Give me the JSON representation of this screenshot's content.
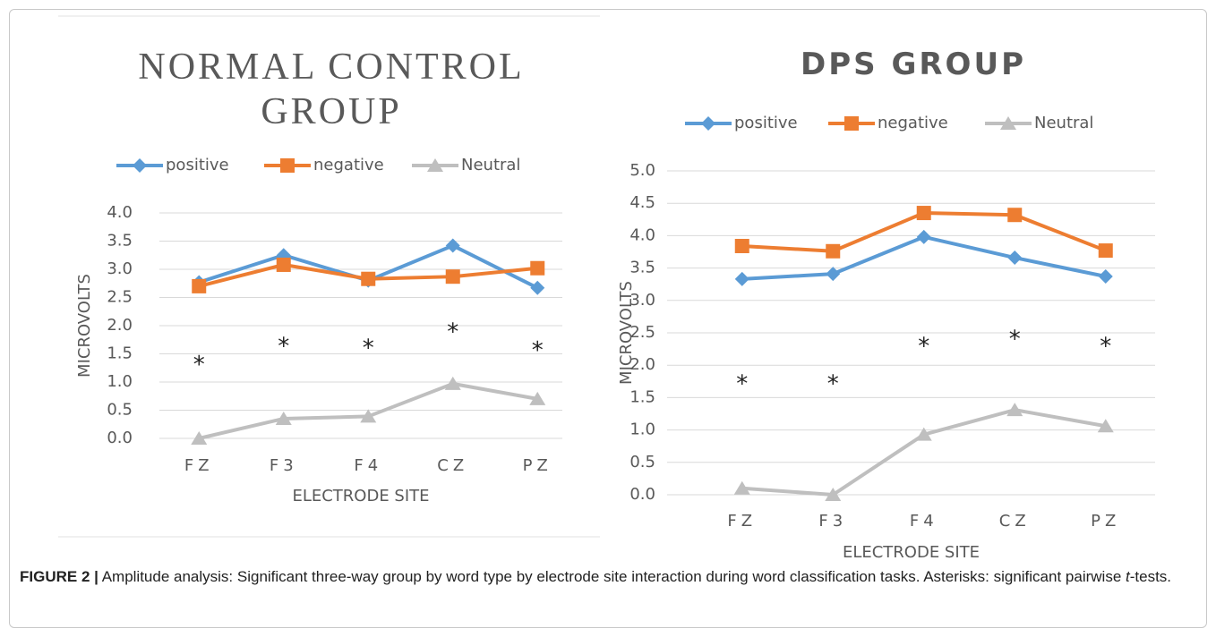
{
  "chart_data": [
    {
      "type": "line",
      "title": "NORMAL CONTROL GROUP",
      "x_label": "ELECTRODE SITE",
      "y_label": "MICROVOLTS",
      "categories": [
        "FZ",
        "F3",
        "F4",
        "CZ",
        "PZ"
      ],
      "series": [
        {
          "name": "positive",
          "color": "#5b9bd5",
          "marker": "diamond",
          "values": [
            2.77,
            3.25,
            2.8,
            3.42,
            2.67
          ]
        },
        {
          "name": "negative",
          "color": "#ed7d31",
          "marker": "square",
          "values": [
            2.7,
            3.08,
            2.83,
            2.87,
            3.02
          ]
        },
        {
          "name": "Neutral",
          "color": "#bfbfbf",
          "marker": "triangle",
          "values": [
            0.0,
            0.35,
            0.39,
            0.97,
            0.7
          ]
        }
      ],
      "ylim": [
        0,
        4
      ],
      "yticks": [
        {
          "value": 0,
          "label": "0.0"
        },
        {
          "value": 0.5,
          "label": "0.5"
        },
        {
          "value": 1,
          "label": "1.0"
        },
        {
          "value": 1.5,
          "label": "1.5"
        },
        {
          "value": 2,
          "label": "2.0"
        },
        {
          "value": 2.5,
          "label": "2.5"
        },
        {
          "value": 3,
          "label": "3.0"
        },
        {
          "value": 3.5,
          "label": "3.5"
        },
        {
          "value": 4,
          "label": "4.0"
        }
      ],
      "grid": true,
      "legend": "top",
      "annotations": [
        {
          "text": "*",
          "x": "FZ",
          "y": 1.37
        },
        {
          "text": "*",
          "x": "F3",
          "y": 1.7
        },
        {
          "text": "*",
          "x": "F4",
          "y": 1.67
        },
        {
          "text": "*",
          "x": "CZ",
          "y": 1.95
        },
        {
          "text": "*",
          "x": "PZ",
          "y": 1.63
        }
      ]
    },
    {
      "type": "line",
      "title": "DPS GROUP",
      "x_label": "ELECTRODE SITE",
      "y_label": "MICROVOLTS",
      "categories": [
        "FZ",
        "F3",
        "F4",
        "CZ",
        "PZ"
      ],
      "series": [
        {
          "name": "positive",
          "color": "#5b9bd5",
          "marker": "diamond",
          "values": [
            3.33,
            3.41,
            3.98,
            3.66,
            3.37
          ]
        },
        {
          "name": "negative",
          "color": "#ed7d31",
          "marker": "square",
          "values": [
            3.84,
            3.76,
            4.35,
            4.32,
            3.77
          ]
        },
        {
          "name": "Neutral",
          "color": "#bfbfbf",
          "marker": "triangle",
          "values": [
            0.1,
            0.0,
            0.93,
            1.31,
            1.06
          ]
        }
      ],
      "ylim": [
        0,
        5
      ],
      "yticks": [
        {
          "value": 0,
          "label": "0.0"
        },
        {
          "value": 0.5,
          "label": "0.5"
        },
        {
          "value": 1,
          "label": "1.0"
        },
        {
          "value": 1.5,
          "label": "1.5"
        },
        {
          "value": 2,
          "label": "2.0"
        },
        {
          "value": 2.5,
          "label": "2.5"
        },
        {
          "value": 3,
          "label": "3.0"
        },
        {
          "value": 3.5,
          "label": "3.5"
        },
        {
          "value": 4,
          "label": "4.0"
        },
        {
          "value": 4.5,
          "label": "4.5"
        },
        {
          "value": 5,
          "label": "5.0"
        }
      ],
      "grid": true,
      "legend": "top",
      "annotations": [
        {
          "text": "*",
          "x": "FZ",
          "y": 1.77
        },
        {
          "text": "*",
          "x": "F3",
          "y": 1.77
        },
        {
          "text": "*",
          "x": "F4",
          "y": 2.35
        },
        {
          "text": "*",
          "x": "CZ",
          "y": 2.46
        },
        {
          "text": "*",
          "x": "PZ",
          "y": 2.35
        }
      ]
    }
  ],
  "caption": {
    "label": "FIGURE 2 |",
    "text": "Amplitude analysis: Significant three-way group by word type by electrode site interaction during word classification tasks. Asterisks: significant pairwise ",
    "italic": "t",
    "end": "-tests."
  }
}
